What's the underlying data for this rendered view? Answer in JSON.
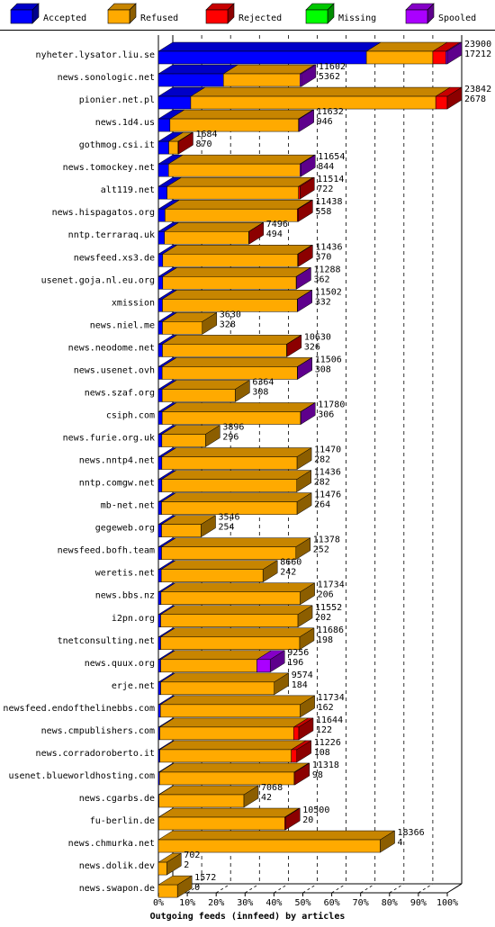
{
  "chart_data": {
    "type": "bar",
    "orientation": "horizontal",
    "stacked": true,
    "three_d": true,
    "xlabel": "Outgoing feeds (innfeed) by articles",
    "ylabel": "",
    "x_unit": "percent",
    "xlim": [
      0,
      100
    ],
    "x_ticks": [
      "0%",
      "10%",
      "20%",
      "30%",
      "40%",
      "50%",
      "60%",
      "70%",
      "80%",
      "90%",
      "100%"
    ],
    "grid": true,
    "legend_position": "top",
    "series": [
      {
        "name": "Accepted",
        "color": "#0000ff"
      },
      {
        "name": "Refused",
        "color": "#ffaa00"
      },
      {
        "name": "Rejected",
        "color": "#ff0000"
      },
      {
        "name": "Missing",
        "color": "#00ff00"
      },
      {
        "name": "Spooled",
        "color": "#aa00ff"
      }
    ],
    "rows": [
      {
        "name": "nyheter.lysator.liu.se",
        "total": "23900",
        "accepted_count": "17212",
        "pct": [
          72.0,
          23.0,
          4.5,
          0,
          0.5
        ]
      },
      {
        "name": "news.sonologic.net",
        "total": "11602",
        "accepted_count": "5362",
        "pct": [
          22.5,
          26.5,
          0,
          0,
          0.5
        ]
      },
      {
        "name": "pionier.net.pl",
        "total": "23842",
        "accepted_count": "2678",
        "pct": [
          11.2,
          84.8,
          4.0,
          0,
          0
        ]
      },
      {
        "name": "news.1d4.us",
        "total": "11632",
        "accepted_count": "946",
        "pct": [
          4.0,
          44.5,
          0,
          0,
          0.3
        ]
      },
      {
        "name": "gothmog.csi.it",
        "total": "1684",
        "accepted_count": "870",
        "pct": [
          3.6,
          3.2,
          0.2,
          0,
          0
        ]
      },
      {
        "name": "news.tomockey.net",
        "total": "11654",
        "accepted_count": "844",
        "pct": [
          3.5,
          45.5,
          0,
          0,
          0.3
        ]
      },
      {
        "name": "alt119.net",
        "total": "11514",
        "accepted_count": "722",
        "pct": [
          3.0,
          45.5,
          0.5,
          0,
          0
        ]
      },
      {
        "name": "news.hispagatos.org",
        "total": "11438",
        "accepted_count": "558",
        "pct": [
          2.3,
          45.8,
          0.3,
          0,
          0
        ]
      },
      {
        "name": "nntp.terraraq.uk",
        "total": "7496",
        "accepted_count": "494",
        "pct": [
          2.1,
          29.2,
          0.1,
          0,
          0
        ]
      },
      {
        "name": "newsfeed.xs3.de",
        "total": "11436",
        "accepted_count": "370",
        "pct": [
          1.5,
          46.7,
          0.2,
          0,
          0
        ]
      },
      {
        "name": "usenet.goja.nl.eu.org",
        "total": "11288",
        "accepted_count": "362",
        "pct": [
          1.5,
          46.2,
          0,
          0,
          0.1
        ]
      },
      {
        "name": "xmission",
        "total": "11502",
        "accepted_count": "332",
        "pct": [
          1.4,
          46.7,
          0,
          0,
          0.1
        ]
      },
      {
        "name": "news.niel.me",
        "total": "3630",
        "accepted_count": "328",
        "pct": [
          1.4,
          13.8,
          0,
          0,
          0
        ]
      },
      {
        "name": "news.neodome.net",
        "total": "10630",
        "accepted_count": "326",
        "pct": [
          1.4,
          43.0,
          0.1,
          0,
          0
        ]
      },
      {
        "name": "news.usenet.ovh",
        "total": "11506",
        "accepted_count": "308",
        "pct": [
          1.3,
          46.8,
          0,
          0,
          0.1
        ]
      },
      {
        "name": "news.szaf.org",
        "total": "6364",
        "accepted_count": "308",
        "pct": [
          1.3,
          25.3,
          0,
          0,
          0
        ]
      },
      {
        "name": "csiph.com",
        "total": "11780",
        "accepted_count": "306",
        "pct": [
          1.3,
          47.9,
          0,
          0,
          0.1
        ]
      },
      {
        "name": "news.furie.org.uk",
        "total": "3896",
        "accepted_count": "296",
        "pct": [
          1.2,
          15.1,
          0,
          0,
          0
        ]
      },
      {
        "name": "news.nntp4.net",
        "total": "11470",
        "accepted_count": "282",
        "pct": [
          1.2,
          46.8,
          0,
          0,
          0
        ]
      },
      {
        "name": "nntp.comgw.net",
        "total": "11436",
        "accepted_count": "282",
        "pct": [
          1.2,
          46.7,
          0,
          0,
          0
        ]
      },
      {
        "name": "mb-net.net",
        "total": "11476",
        "accepted_count": "264",
        "pct": [
          1.1,
          46.9,
          0,
          0,
          0
        ]
      },
      {
        "name": "gegeweb.org",
        "total": "3546",
        "accepted_count": "254",
        "pct": [
          1.1,
          13.7,
          0,
          0,
          0
        ]
      },
      {
        "name": "newsfeed.bofh.team",
        "total": "11378",
        "accepted_count": "252",
        "pct": [
          1.1,
          46.5,
          0,
          0,
          0
        ]
      },
      {
        "name": "weretis.net",
        "total": "8660",
        "accepted_count": "242",
        "pct": [
          1.0,
          35.2,
          0,
          0,
          0
        ]
      },
      {
        "name": "news.bbs.nz",
        "total": "11734",
        "accepted_count": "206",
        "pct": [
          0.9,
          48.2,
          0,
          0,
          0
        ]
      },
      {
        "name": "i2pn.org",
        "total": "11552",
        "accepted_count": "202",
        "pct": [
          0.8,
          47.5,
          0,
          0,
          0
        ]
      },
      {
        "name": "tnetconsulting.net",
        "total": "11686",
        "accepted_count": "198",
        "pct": [
          0.8,
          48.1,
          0,
          0,
          0
        ]
      },
      {
        "name": "news.quux.org",
        "total": "9256",
        "accepted_count": "196",
        "pct": [
          0.8,
          33.3,
          0,
          0,
          4.6
        ]
      },
      {
        "name": "erje.net",
        "total": "9574",
        "accepted_count": "184",
        "pct": [
          0.8,
          39.3,
          0,
          0,
          0
        ]
      },
      {
        "name": "newsfeed.endofthelinebbs.com",
        "total": "11734",
        "accepted_count": "162",
        "pct": [
          0.7,
          48.4,
          0,
          0,
          0
        ]
      },
      {
        "name": "news.cmpublishers.com",
        "total": "11644",
        "accepted_count": "122",
        "pct": [
          0.5,
          46.3,
          1.8,
          0,
          0
        ]
      },
      {
        "name": "news.corradoroberto.it",
        "total": "11226",
        "accepted_count": "108",
        "pct": [
          0.5,
          45.5,
          1.9,
          0,
          0
        ]
      },
      {
        "name": "usenet.blueworldhosting.com",
        "total": "11318",
        "accepted_count": "98",
        "pct": [
          0.4,
          46.6,
          0.3,
          0,
          0
        ]
      },
      {
        "name": "news.cgarbs.de",
        "total": "7068",
        "accepted_count": "42",
        "pct": [
          0.2,
          29.4,
          0,
          0,
          0
        ]
      },
      {
        "name": "fu-berlin.de",
        "total": "10500",
        "accepted_count": "20",
        "pct": [
          0.1,
          43.6,
          0.3,
          0,
          0
        ]
      },
      {
        "name": "news.chmurka.net",
        "total": "18366",
        "accepted_count": "4",
        "pct": [
          0,
          76.8,
          0,
          0,
          0
        ]
      },
      {
        "name": "news.dolik.dev",
        "total": "702",
        "accepted_count": "2",
        "pct": [
          0,
          2.9,
          0,
          0,
          0
        ]
      },
      {
        "name": "news.swapon.de",
        "total": "1572",
        "accepted_count": "0",
        "pct": [
          0,
          6.6,
          0,
          0,
          0
        ]
      }
    ]
  }
}
